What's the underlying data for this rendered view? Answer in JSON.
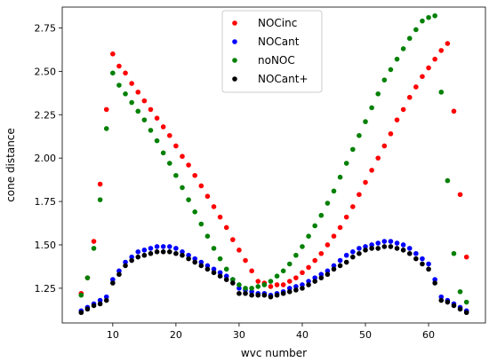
{
  "chart_data": {
    "type": "scatter",
    "xlabel": "wvc number",
    "ylabel": "cone distance",
    "xlim": [
      2,
      69
    ],
    "ylim": [
      1.05,
      2.87
    ],
    "xticks": [
      10,
      20,
      30,
      40,
      50,
      60
    ],
    "yticks": [
      1.25,
      1.5,
      1.75,
      2.0,
      2.25,
      2.5,
      2.75
    ],
    "ytick_labels": [
      "1.25",
      "1.50",
      "1.75",
      "2.00",
      "2.25",
      "2.50",
      "2.75"
    ],
    "grid": false,
    "legend_position": "top-center",
    "series": [
      {
        "name": "NOCinc",
        "color": "#ff0000",
        "x": [
          5,
          6,
          7,
          8,
          9,
          10,
          11,
          12,
          13,
          14,
          15,
          16,
          17,
          18,
          19,
          20,
          21,
          22,
          23,
          24,
          25,
          26,
          27,
          28,
          29,
          30,
          31,
          32,
          33,
          34,
          35,
          36,
          37,
          38,
          39,
          40,
          41,
          42,
          43,
          44,
          45,
          46,
          47,
          48,
          49,
          50,
          51,
          52,
          53,
          54,
          55,
          56,
          57,
          58,
          59,
          60,
          61,
          62,
          63,
          64,
          65,
          66
        ],
        "y": [
          1.22,
          1.31,
          1.52,
          1.85,
          2.28,
          2.6,
          2.53,
          2.49,
          2.43,
          2.38,
          2.33,
          2.28,
          2.23,
          2.18,
          2.13,
          2.07,
          2.01,
          1.96,
          1.9,
          1.84,
          1.78,
          1.72,
          1.66,
          1.6,
          1.53,
          1.47,
          1.41,
          1.35,
          1.29,
          1.28,
          1.26,
          1.27,
          1.27,
          1.29,
          1.31,
          1.34,
          1.37,
          1.41,
          1.45,
          1.5,
          1.55,
          1.6,
          1.66,
          1.72,
          1.79,
          1.86,
          1.93,
          2.0,
          2.07,
          2.14,
          2.22,
          2.28,
          2.35,
          2.41,
          2.47,
          2.52,
          2.57,
          2.62,
          2.66,
          2.27,
          1.79,
          1.43
        ]
      },
      {
        "name": "NOCant",
        "color": "#0000ff",
        "x": [
          5,
          6,
          7,
          8,
          9,
          10,
          11,
          12,
          13,
          14,
          15,
          16,
          17,
          18,
          19,
          20,
          21,
          22,
          23,
          24,
          25,
          26,
          27,
          28,
          29,
          30,
          31,
          32,
          33,
          34,
          35,
          36,
          37,
          38,
          39,
          40,
          41,
          42,
          43,
          44,
          45,
          46,
          47,
          48,
          49,
          50,
          51,
          52,
          53,
          54,
          55,
          56,
          57,
          58,
          59,
          60,
          61,
          62,
          63,
          64,
          65,
          66
        ],
        "y": [
          1.12,
          1.14,
          1.16,
          1.18,
          1.2,
          1.3,
          1.35,
          1.4,
          1.43,
          1.46,
          1.47,
          1.48,
          1.49,
          1.49,
          1.49,
          1.48,
          1.46,
          1.44,
          1.42,
          1.4,
          1.38,
          1.36,
          1.34,
          1.32,
          1.3,
          1.25,
          1.24,
          1.23,
          1.22,
          1.22,
          1.21,
          1.22,
          1.23,
          1.25,
          1.26,
          1.27,
          1.29,
          1.31,
          1.33,
          1.35,
          1.38,
          1.41,
          1.44,
          1.46,
          1.48,
          1.49,
          1.5,
          1.51,
          1.52,
          1.52,
          1.51,
          1.5,
          1.48,
          1.45,
          1.42,
          1.39,
          1.3,
          1.2,
          1.18,
          1.16,
          1.14,
          1.12
        ]
      },
      {
        "name": "noNOC",
        "color": "#008000",
        "x": [
          5,
          6,
          7,
          8,
          9,
          10,
          11,
          12,
          13,
          14,
          15,
          16,
          17,
          18,
          19,
          20,
          21,
          22,
          23,
          24,
          25,
          26,
          27,
          28,
          29,
          30,
          31,
          32,
          33,
          34,
          35,
          36,
          37,
          38,
          39,
          40,
          41,
          42,
          43,
          44,
          45,
          46,
          47,
          48,
          49,
          50,
          51,
          52,
          53,
          54,
          55,
          56,
          57,
          58,
          59,
          60,
          61,
          62,
          63,
          64,
          65,
          66
        ],
        "y": [
          1.21,
          1.31,
          1.48,
          1.76,
          2.17,
          2.49,
          2.42,
          2.37,
          2.32,
          2.27,
          2.22,
          2.16,
          2.1,
          2.03,
          1.97,
          1.9,
          1.83,
          1.76,
          1.69,
          1.62,
          1.55,
          1.48,
          1.42,
          1.36,
          1.3,
          1.27,
          1.25,
          1.25,
          1.26,
          1.27,
          1.29,
          1.32,
          1.35,
          1.39,
          1.44,
          1.49,
          1.55,
          1.61,
          1.67,
          1.74,
          1.81,
          1.89,
          1.97,
          2.05,
          2.13,
          2.21,
          2.29,
          2.37,
          2.45,
          2.51,
          2.57,
          2.63,
          2.69,
          2.74,
          2.79,
          2.81,
          2.82,
          2.38,
          1.87,
          1.45,
          1.23,
          1.17
        ]
      },
      {
        "name": "NOCant+",
        "color": "#000000",
        "x": [
          5,
          6,
          7,
          8,
          9,
          10,
          11,
          12,
          13,
          14,
          15,
          16,
          17,
          18,
          19,
          20,
          21,
          22,
          23,
          24,
          25,
          26,
          27,
          28,
          29,
          30,
          31,
          32,
          33,
          34,
          35,
          36,
          37,
          38,
          39,
          40,
          41,
          42,
          43,
          44,
          45,
          46,
          47,
          48,
          49,
          50,
          51,
          52,
          53,
          54,
          55,
          56,
          57,
          58,
          59,
          60,
          61,
          62,
          63,
          64,
          65,
          66
        ],
        "y": [
          1.11,
          1.13,
          1.15,
          1.16,
          1.18,
          1.28,
          1.33,
          1.38,
          1.41,
          1.43,
          1.44,
          1.45,
          1.46,
          1.46,
          1.46,
          1.45,
          1.44,
          1.42,
          1.4,
          1.38,
          1.36,
          1.34,
          1.32,
          1.3,
          1.28,
          1.22,
          1.22,
          1.21,
          1.21,
          1.21,
          1.2,
          1.21,
          1.22,
          1.23,
          1.24,
          1.25,
          1.27,
          1.29,
          1.31,
          1.33,
          1.36,
          1.38,
          1.4,
          1.43,
          1.45,
          1.47,
          1.48,
          1.48,
          1.49,
          1.49,
          1.48,
          1.47,
          1.45,
          1.42,
          1.39,
          1.36,
          1.28,
          1.18,
          1.17,
          1.15,
          1.13,
          1.11
        ]
      }
    ]
  }
}
